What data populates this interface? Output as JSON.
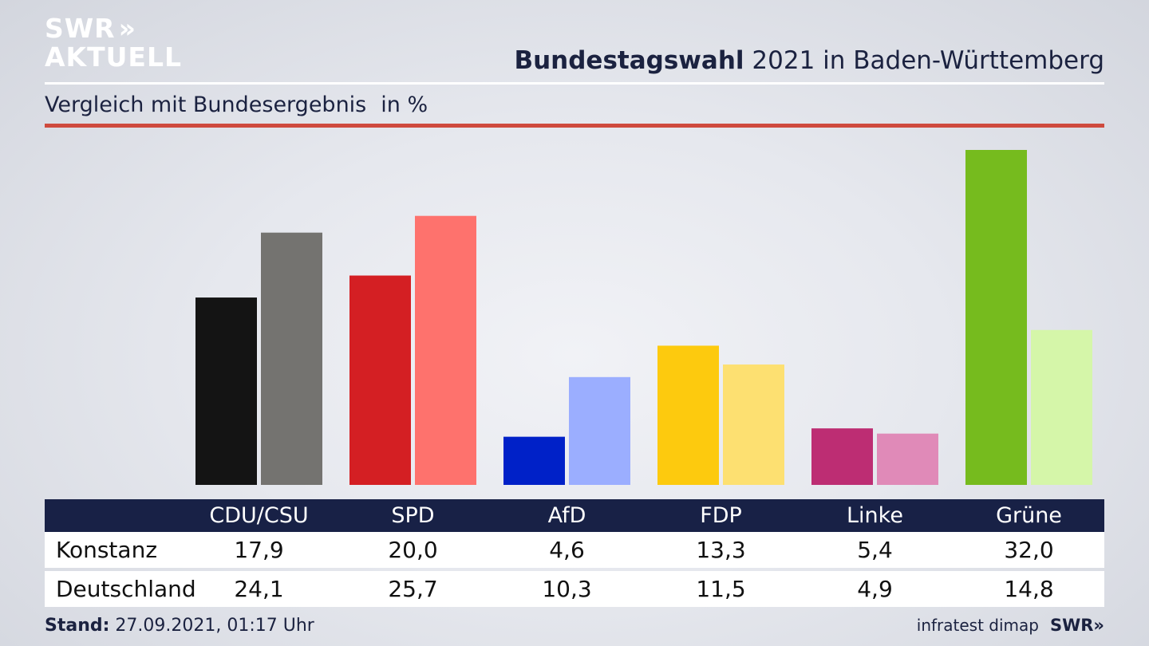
{
  "logo": {
    "line1": "SWR",
    "line2": "AKTUELL",
    "chevrons": "»"
  },
  "header": {
    "title_bold": "Bundestagswahl",
    "title_rest": " 2021 in Baden-Württemberg",
    "subtitle": "Vergleich mit Bundesergebnis",
    "unit": "in %"
  },
  "chart_data": {
    "type": "bar",
    "categories": [
      "CDU/CSU",
      "SPD",
      "AfD",
      "FDP",
      "Linke",
      "Grüne"
    ],
    "series": [
      {
        "name": "Konstanz",
        "values": [
          17.9,
          20.0,
          4.6,
          13.3,
          5.4,
          32.0
        ]
      },
      {
        "name": "Deutschland",
        "values": [
          24.1,
          25.7,
          10.3,
          11.5,
          4.9,
          14.8
        ]
      }
    ],
    "colors": {
      "Konstanz": [
        "#141414",
        "#d41f23",
        "#0021c8",
        "#fdca0e",
        "#bd2d73",
        "#76bb1e"
      ],
      "Deutschland": [
        "#747370",
        "#fe726d",
        "#9baeff",
        "#fde071",
        "#e08ab8",
        "#d5f6a9"
      ]
    },
    "ylim": [
      0,
      32.0
    ],
    "grid": false,
    "legend": "none"
  },
  "table": {
    "headers": [
      "CDU/CSU",
      "SPD",
      "AfD",
      "FDP",
      "Linke",
      "Grüne"
    ],
    "rows": [
      {
        "label": "Konstanz",
        "values": [
          "17,9",
          "20,0",
          "4,6",
          "13,3",
          "5,4",
          "32,0"
        ]
      },
      {
        "label": "Deutschland",
        "values": [
          "24,1",
          "25,7",
          "10,3",
          "11,5",
          "4,9",
          "14,8"
        ]
      }
    ]
  },
  "footer": {
    "stand_label": "Stand:",
    "stand_value": " 27.09.2021, 01:17 Uhr",
    "source": "infratest dimap",
    "brand": "SWR»"
  }
}
